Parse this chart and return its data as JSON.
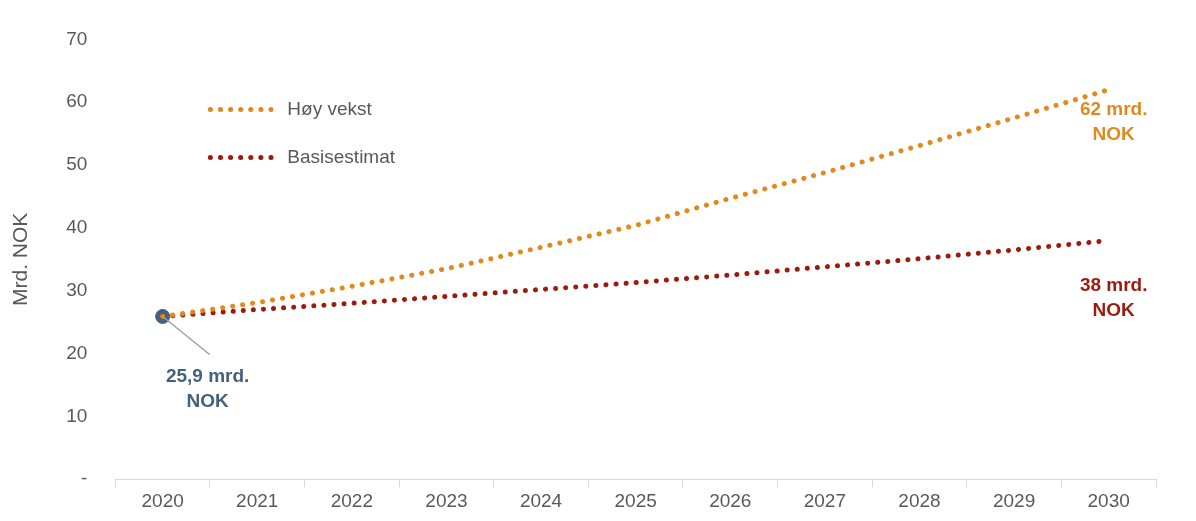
{
  "chart_data": {
    "type": "line",
    "ylabel": "Mrd. NOK",
    "categories": [
      "2020",
      "2021",
      "2022",
      "2023",
      "2024",
      "2025",
      "2026",
      "2027",
      "2028",
      "2029",
      "2030"
    ],
    "ylim": [
      0,
      70
    ],
    "yticks": [
      {
        "value": 0,
        "label": "-"
      },
      10,
      20,
      30,
      40,
      50,
      60,
      70
    ],
    "grid": false,
    "legend": "top left",
    "line_style": "dotted",
    "marker": "none",
    "series": [
      {
        "name": "Høy vekst",
        "color": "#e08a1e",
        "values": [
          25.9,
          28.1,
          30.7,
          33.5,
          36.9,
          40.4,
          44.7,
          48.8,
          53.1,
          57.5,
          62
        ],
        "value_labels": [
          null,
          null,
          null,
          null,
          null,
          null,
          null,
          null,
          null,
          null,
          "62 mrd. NOK"
        ]
      },
      {
        "name": "Basisestimat",
        "color": "#9b1b0e",
        "values": [
          25.9,
          27.0,
          28.0,
          29.1,
          30.2,
          31.3,
          32.5,
          33.8,
          35.1,
          36.5,
          38
        ],
        "value_labels": [
          null,
          null,
          null,
          null,
          null,
          null,
          null,
          null,
          null,
          null,
          "38 mrd. NOK"
        ]
      },
      {
        "type": "scatter",
        "marker": "circle",
        "color": "#44607f",
        "values": [
          25.9,
          null,
          null,
          null,
          null,
          null,
          null,
          null,
          null,
          null,
          null
        ],
        "value_labels": [
          "25,9 mrd. NOK",
          null,
          null,
          null,
          null,
          null,
          null,
          null,
          null,
          null,
          null
        ]
      }
    ]
  }
}
